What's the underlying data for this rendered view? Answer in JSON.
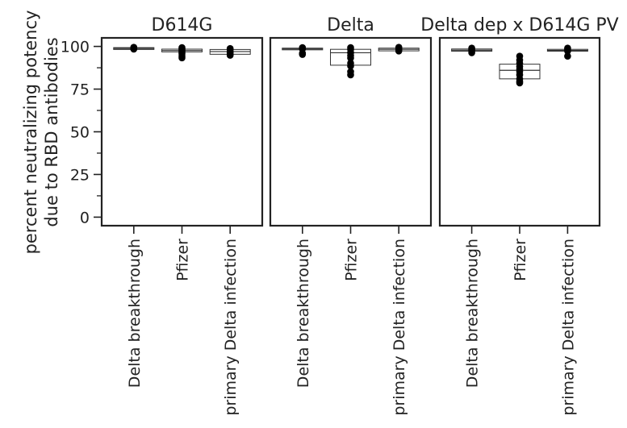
{
  "chart_data": {
    "type": "box",
    "ylabel": [
      "percent neutralizing potency",
      "due to RBD antibodies"
    ],
    "ylim": [
      -5,
      105
    ],
    "yticks": [
      0,
      25,
      50,
      75,
      100
    ],
    "yticks_minor": [
      12.5,
      37.5,
      62.5,
      87.5
    ],
    "categories": [
      "Delta breakthrough",
      "Pfizer",
      "primary Delta infection"
    ],
    "panels": [
      {
        "title": "D614G",
        "boxes": [
          {
            "category": "Delta breakthrough",
            "q1": 98.2,
            "median": 98.8,
            "q3": 99.3,
            "points": [
              99.5,
              99.2,
              98.8,
              98.4
            ]
          },
          {
            "category": "Pfizer",
            "q1": 96.8,
            "median": 97.6,
            "q3": 98.4,
            "points": [
              99.3,
              98.7,
              98.0,
              97.2,
              96.5,
              95.6,
              94.3,
              93.3
            ]
          },
          {
            "category": "primary Delta infection",
            "q1": 95.4,
            "median": 97.0,
            "q3": 98.2,
            "points": [
              98.8,
              98.2,
              97.0,
              96.2,
              95.4,
              94.8
            ]
          }
        ]
      },
      {
        "title": "Delta",
        "boxes": [
          {
            "category": "Delta breakthrough",
            "q1": 98.0,
            "median": 98.5,
            "q3": 99.0,
            "points": [
              99.3,
              98.5,
              96.0,
              95.3
            ]
          },
          {
            "category": "Pfizer",
            "q1": 89.0,
            "median": 96.3,
            "q3": 98.3,
            "points": [
              99.3,
              98.3,
              96.3,
              94.7,
              93.2,
              90.2,
              88.5,
              85.2,
              83.3
            ]
          },
          {
            "category": "primary Delta infection",
            "q1": 97.4,
            "median": 98.3,
            "q3": 99.0,
            "points": [
              99.5,
              98.8,
              98.0,
              97.3
            ]
          }
        ]
      },
      {
        "title": "Delta dep x D614G PV",
        "boxes": [
          {
            "category": "Delta breakthrough",
            "q1": 97.2,
            "median": 97.8,
            "q3": 98.5,
            "points": [
              99.0,
              98.2,
              97.5,
              96.3
            ]
          },
          {
            "category": "Pfizer",
            "q1": 81.0,
            "median": 86.0,
            "q3": 89.6,
            "points": [
              94.3,
              92.0,
              90.2,
              88.2,
              86.7,
              85.3,
              83.3,
              81.0,
              79.5,
              78.6
            ]
          },
          {
            "category": "primary Delta infection",
            "q1": 97.2,
            "median": 97.7,
            "q3": 98.3,
            "points": [
              99.0,
              98.2,
              97.3,
              94.3
            ]
          }
        ]
      }
    ]
  }
}
